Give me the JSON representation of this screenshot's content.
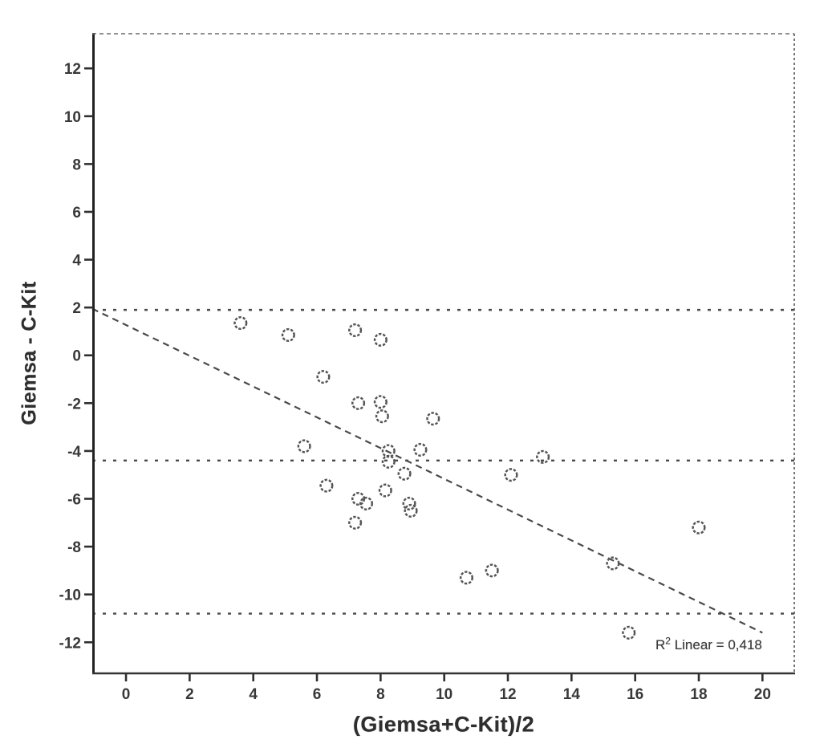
{
  "figure": {
    "background": "#ffffff",
    "ink_color": "#2f2f2f",
    "line_color": "#4a4a4a",
    "marker_color": "#565656"
  },
  "chart_data": {
    "type": "scatter",
    "title": "",
    "xlabel": "(Giemsa+C-Kit)/2",
    "ylabel": "Giemsa - C-Kit",
    "xlim": [
      -1.06,
      21.0
    ],
    "ylim": [
      -13.3,
      13.45
    ],
    "x_ticks": [
      0,
      2,
      4,
      6,
      8,
      10,
      12,
      14,
      16,
      18,
      20
    ],
    "y_ticks": [
      -12,
      -10,
      -8,
      -6,
      -4,
      -2,
      0,
      2,
      4,
      6,
      8,
      10,
      12
    ],
    "grid": false,
    "legend": null,
    "marker": {
      "shape": "open-circle",
      "radius_px": 7.3
    },
    "points": [
      [
        3.6,
        1.35
      ],
      [
        5.1,
        0.85
      ],
      [
        7.2,
        1.05
      ],
      [
        8.0,
        0.65
      ],
      [
        6.2,
        -0.9
      ],
      [
        7.3,
        -2.0
      ],
      [
        8.0,
        -1.95
      ],
      [
        8.05,
        -2.55
      ],
      [
        9.65,
        -2.65
      ],
      [
        5.6,
        -3.8
      ],
      [
        8.25,
        -4.0
      ],
      [
        9.25,
        -3.95
      ],
      [
        13.1,
        -4.25
      ],
      [
        8.25,
        -4.45
      ],
      [
        8.75,
        -4.95
      ],
      [
        12.1,
        -5.0
      ],
      [
        6.3,
        -5.45
      ],
      [
        8.15,
        -5.65
      ],
      [
        7.3,
        -6.0
      ],
      [
        7.55,
        -6.2
      ],
      [
        8.9,
        -6.2
      ],
      [
        8.95,
        -6.5
      ],
      [
        7.2,
        -7.0
      ],
      [
        18.0,
        -7.2
      ],
      [
        15.3,
        -8.7
      ],
      [
        11.5,
        -9.0
      ],
      [
        10.7,
        -9.3
      ],
      [
        15.8,
        -11.6
      ]
    ],
    "reference_lines": [
      {
        "name": "upper-limit",
        "y": 1.9
      },
      {
        "name": "mean",
        "y": -4.4
      },
      {
        "name": "lower-limit",
        "y": -10.8
      }
    ],
    "regression_line": {
      "x1": -1.06,
      "y1": 1.95,
      "x2": 20.0,
      "y2": -11.6
    },
    "annotation": {
      "prefix": "R",
      "superscript": "2",
      "rest": " Linear = 0,418"
    }
  }
}
